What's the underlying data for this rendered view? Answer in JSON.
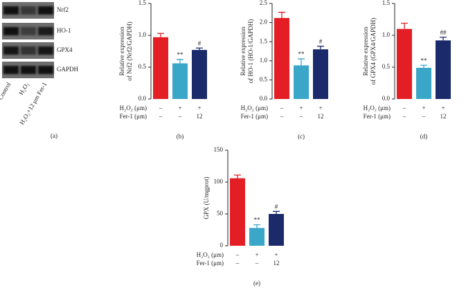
{
  "blot": {
    "bands": [
      "Nrf2",
      "HO-1",
      "GPX4",
      "GAPDH"
    ],
    "lanes": [
      "Control",
      "H₂O₂",
      "H₂O₂+12 μm Fer-1"
    ],
    "panel": "(a)"
  },
  "chart_data": [
    {
      "type": "bar",
      "panel": "(b)",
      "ylabel": [
        "Relative expression",
        "of Nrf2 (Nrf2/GAPDH)"
      ],
      "values": [
        0.97,
        0.56,
        0.77
      ],
      "errors": [
        0.06,
        0.06,
        0.03
      ],
      "colors": [
        "#e31e24",
        "#3aa6c8",
        "#1b2a6b"
      ],
      "annotations": [
        null,
        "**",
        "#"
      ],
      "ylim": [
        0,
        1.5
      ],
      "yticks": [
        {
          "value": 0,
          "label": "0.0"
        },
        0.5,
        {
          "value": 1,
          "label": "1.0"
        },
        1.5
      ],
      "conditions": [
        {
          "name": "H₂O₂ (μm)",
          "values": [
            "–",
            "+",
            "+"
          ]
        },
        {
          "name": "Fer-1 (μm)",
          "values": [
            "–",
            "–",
            "12"
          ]
        }
      ]
    },
    {
      "type": "bar",
      "panel": "(c)",
      "ylabel": [
        "Relative expression",
        "of HO-1 (HO-1/GAPDH)"
      ],
      "values": [
        2.12,
        0.88,
        1.3
      ],
      "errors": [
        0.15,
        0.17,
        0.08
      ],
      "colors": [
        "#e31e24",
        "#3aa6c8",
        "#1b2a6b"
      ],
      "annotations": [
        null,
        "**",
        "#"
      ],
      "ylim": [
        0,
        2.5
      ],
      "yticks": [
        {
          "value": 0,
          "label": "0.0"
        },
        0.5,
        {
          "value": 1,
          "label": "1.0"
        },
        1.5,
        {
          "value": 2,
          "label": "2.0"
        },
        2.5
      ],
      "conditions": [
        {
          "name": "H₂O₂ (μm)",
          "values": [
            "–",
            "+",
            "+"
          ]
        },
        {
          "name": "Fer-1 (μm)",
          "values": [
            "–",
            "–",
            "12"
          ]
        }
      ]
    },
    {
      "type": "bar",
      "panel": "(d)",
      "ylabel": [
        "Relative expression",
        "of GPX4 (GPX4/GAPDH)"
      ],
      "values": [
        1.1,
        0.49,
        0.92
      ],
      "errors": [
        0.09,
        0.04,
        0.05
      ],
      "colors": [
        "#e31e24",
        "#3aa6c8",
        "#1b2a6b"
      ],
      "annotations": [
        null,
        "**",
        "##"
      ],
      "ylim": [
        0,
        1.5
      ],
      "yticks": [
        {
          "value": 0,
          "label": "0.0"
        },
        0.5,
        {
          "value": 1,
          "label": "1.0"
        },
        1.5
      ],
      "conditions": [
        {
          "name": "H₂O₂ (μm)",
          "values": [
            "–",
            "+",
            "+"
          ]
        },
        {
          "name": "Fer-1 (μm)",
          "values": [
            "–",
            "–",
            "12"
          ]
        }
      ]
    },
    {
      "type": "bar",
      "panel": "(e)",
      "ylabel": [
        "GPX (U/mgprot)"
      ],
      "values": [
        106,
        28,
        50
      ],
      "errors": [
        5,
        5,
        4
      ],
      "colors": [
        "#e31e24",
        "#3aa6c8",
        "#1b2a6b"
      ],
      "annotations": [
        null,
        "**",
        "#"
      ],
      "ylim": [
        0,
        150
      ],
      "yticks": [
        0,
        50,
        100,
        150
      ],
      "conditions": [
        {
          "name": "H₂O₂ (μm)",
          "values": [
            "–",
            "+",
            "+"
          ]
        },
        {
          "name": "Fer-1 (μm)",
          "values": [
            "–",
            "–",
            "12"
          ]
        }
      ]
    }
  ]
}
